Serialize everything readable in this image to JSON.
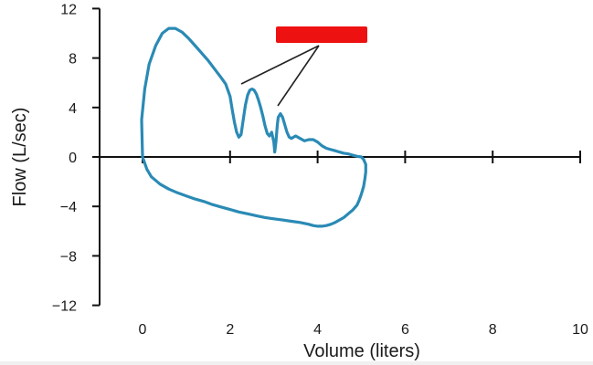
{
  "chart_data": {
    "type": "line",
    "xlabel": "Volume (liters)",
    "ylabel": "Flow (L/sec)",
    "xlim": [
      -1,
      10
    ],
    "ylim": [
      -12,
      12
    ],
    "x_ticks": [
      0,
      2,
      4,
      6,
      8,
      10
    ],
    "y_ticks": [
      -12,
      -8,
      -4,
      0,
      4,
      8,
      12
    ],
    "x_tick_labels": [
      "0",
      "2",
      "4",
      "6",
      "8",
      "10"
    ],
    "y_tick_labels": [
      "−12",
      "−8",
      "−4",
      "0",
      "4",
      "8",
      "12"
    ],
    "grid": false,
    "line_color": "#2a8ab5",
    "series": [
      {
        "x": [
          0,
          -0.02,
          0.05,
          0.15,
          0.3,
          0.45,
          0.6,
          0.75,
          0.9,
          1.05,
          1.2,
          1.35,
          1.5,
          1.65,
          1.8,
          1.9,
          2.0,
          2.05,
          2.1,
          2.15,
          2.2,
          2.25,
          2.3,
          2.35,
          2.4,
          2.45,
          2.5,
          2.55,
          2.6,
          2.65,
          2.7,
          2.75,
          2.8,
          2.85,
          2.9,
          2.95,
          3.0,
          3.02,
          3.05,
          3.08,
          3.1,
          3.15,
          3.2,
          3.25,
          3.3,
          3.35,
          3.4,
          3.45,
          3.5,
          3.6,
          3.7,
          3.8,
          3.9,
          4.0,
          4.1,
          4.2,
          4.3,
          4.4,
          4.5,
          4.6,
          4.7,
          4.8,
          4.9,
          5.0,
          5.05,
          5.1,
          5.1,
          5.08,
          5.05,
          5.0,
          4.95,
          4.9,
          4.8,
          4.7,
          4.6,
          4.5,
          4.4,
          4.3,
          4.2,
          4.1,
          4.0,
          3.9,
          3.8,
          3.6,
          3.4,
          3.2,
          3.0,
          2.8,
          2.6,
          2.4,
          2.2,
          2.0,
          1.8,
          1.6,
          1.4,
          1.2,
          1.0,
          0.8,
          0.6,
          0.4,
          0.2,
          0.1,
          0.0
        ],
        "y": [
          0,
          3.0,
          5.5,
          7.5,
          9.0,
          10.0,
          10.4,
          10.4,
          10.1,
          9.6,
          9.0,
          8.4,
          7.8,
          7.1,
          6.4,
          5.9,
          4.9,
          3.8,
          2.8,
          2.0,
          1.6,
          1.8,
          3.0,
          4.2,
          5.0,
          5.4,
          5.5,
          5.4,
          5.1,
          4.6,
          4.0,
          3.3,
          2.5,
          1.9,
          1.7,
          2.0,
          1.2,
          0.4,
          1.3,
          2.6,
          3.2,
          3.5,
          3.2,
          2.6,
          2.0,
          1.6,
          1.5,
          1.6,
          1.7,
          1.5,
          1.3,
          1.4,
          1.4,
          1.2,
          0.9,
          0.7,
          0.6,
          0.5,
          0.4,
          0.3,
          0.25,
          0.15,
          0.05,
          0.0,
          -0.2,
          -0.6,
          -1.2,
          -1.8,
          -2.4,
          -3.0,
          -3.5,
          -3.9,
          -4.3,
          -4.6,
          -4.9,
          -5.1,
          -5.3,
          -5.45,
          -5.55,
          -5.6,
          -5.6,
          -5.55,
          -5.45,
          -5.3,
          -5.2,
          -5.1,
          -5.0,
          -4.9,
          -4.75,
          -4.6,
          -4.45,
          -4.25,
          -4.05,
          -3.85,
          -3.6,
          -3.4,
          -3.15,
          -2.9,
          -2.6,
          -2.2,
          -1.6,
          -1.0,
          0.0
        ]
      }
    ]
  }
}
